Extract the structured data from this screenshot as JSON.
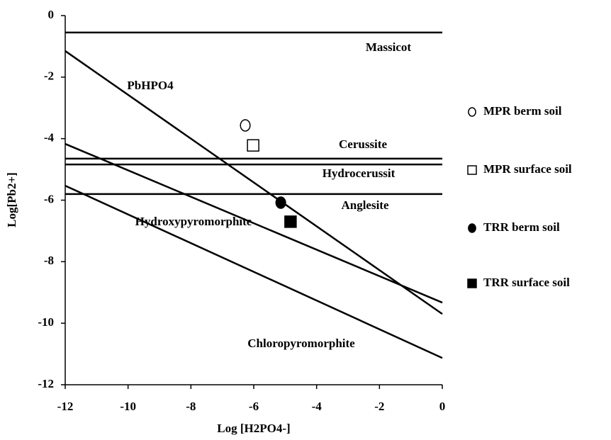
{
  "chart_data": {
    "type": "scatter",
    "x_label": "Log [H2PO4-]",
    "y_label": "Log[Pb2+]",
    "xlim": [
      -12,
      0
    ],
    "ylim": [
      -12,
      0
    ],
    "xticks": [
      -12,
      -10,
      -8,
      -6,
      -4,
      -2,
      0
    ],
    "yticks": [
      -12,
      -10,
      -8,
      -6,
      -4,
      -2,
      0
    ],
    "lines": [
      {
        "x": [
          -12,
          0
        ],
        "values": [
          -0.55,
          -0.55
        ]
      },
      {
        "x": [
          -12,
          0
        ],
        "values": [
          -1.15,
          -9.7
        ]
      },
      {
        "x": [
          -12,
          0
        ],
        "values": [
          -4.17,
          -9.33
        ]
      },
      {
        "x": [
          -12,
          0
        ],
        "values": [
          -5.53,
          -11.13
        ]
      },
      {
        "x": [
          -12,
          0
        ],
        "values": [
          -4.65,
          -4.65
        ]
      },
      {
        "x": [
          -12,
          0
        ],
        "values": [
          -4.84,
          -4.84
        ]
      },
      {
        "x": [
          -12,
          0
        ],
        "values": [
          -5.8,
          -5.8
        ]
      }
    ],
    "annotations": [
      "Massicot",
      "PbHPO4",
      "Cerussite",
      "Hydrocerussit",
      "Anglesite",
      "Hydroxypyromorphite",
      "Chloropyromorphite"
    ],
    "series": [
      {
        "name": "MPR berm soil",
        "marker": "circle",
        "filled": false,
        "color": "#000000",
        "x": [
          -6.27
        ],
        "values": [
          -3.57
        ]
      },
      {
        "name": "MPR surface soil",
        "marker": "square",
        "filled": false,
        "color": "#000000",
        "x": [
          -6.02
        ],
        "values": [
          -4.22
        ]
      },
      {
        "name": "TRR berm soil",
        "marker": "circle",
        "filled": true,
        "color": "#000000",
        "x": [
          -5.14
        ],
        "values": [
          -6.08
        ]
      },
      {
        "name": "TRR surface soil",
        "marker": "square",
        "filled": true,
        "color": "#000000",
        "x": [
          -4.83
        ],
        "values": [
          -6.7
        ]
      }
    ]
  }
}
